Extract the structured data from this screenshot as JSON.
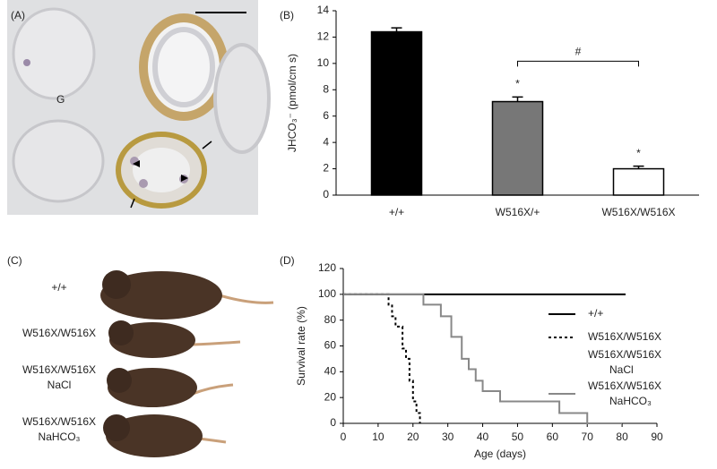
{
  "panels": {
    "a": {
      "label": "(A)",
      "annotation": "G"
    },
    "c": {
      "label": "(C)",
      "rows": [
        [
          "+/+"
        ],
        [
          "W516X/W516X"
        ],
        [
          "W516X/W516X",
          "NaCl"
        ],
        [
          "W516X/W516X",
          "NaHCO₃"
        ]
      ]
    }
  },
  "chart_data": [
    {
      "type": "bar",
      "panel_label": "(B)",
      "y_label": "JHCO₃⁻ (pmol/cm s)",
      "categories": [
        "+/+",
        "W516X/+",
        "W516X/W516X"
      ],
      "values": [
        12.4,
        7.1,
        2.0
      ],
      "errors": [
        0.3,
        0.35,
        0.2
      ],
      "colors": [
        "#000000",
        "#777777",
        "#ffffff"
      ],
      "value_annotations": [
        null,
        "*",
        "*"
      ],
      "bracket_label": "#",
      "ylim": [
        0,
        14
      ],
      "yticks": [
        0,
        2,
        4,
        6,
        8,
        10,
        12,
        14
      ]
    },
    {
      "type": "step",
      "panel_label": "(D)",
      "x_label": "Age (days)",
      "y_label": "Survival rate (%)",
      "xlim": [
        0,
        90
      ],
      "xticks": [
        0,
        10,
        20,
        30,
        40,
        50,
        60,
        70,
        80,
        90
      ],
      "ylim": [
        0,
        120
      ],
      "yticks": [
        0,
        20,
        40,
        60,
        80,
        100,
        120
      ],
      "series": [
        {
          "name": "+/+",
          "color": "#000000",
          "dash": "solid",
          "x": [
            0,
            81
          ],
          "values": [
            100,
            100
          ]
        },
        {
          "name": "W516X/W516X",
          "color": "#000000",
          "dash": "dotted",
          "x": [
            0,
            13,
            14,
            15,
            17,
            18,
            19,
            20,
            21,
            22
          ],
          "values": [
            100,
            92,
            83,
            75,
            58,
            50,
            33,
            17,
            8,
            0
          ]
        },
        {
          "name": "W516X/W516X NaCl",
          "color": "#ffffff",
          "dash": "solid",
          "x": [],
          "values": []
        },
        {
          "name": "W516X/W516X NaHCO₃",
          "color": "#888888",
          "dash": "solid",
          "x": [
            0,
            23,
            28,
            31,
            34,
            36,
            38,
            40,
            45,
            62,
            70,
            80
          ],
          "values": [
            100,
            92,
            83,
            67,
            50,
            42,
            33,
            25,
            17,
            8,
            0,
            0
          ]
        }
      ]
    }
  ]
}
